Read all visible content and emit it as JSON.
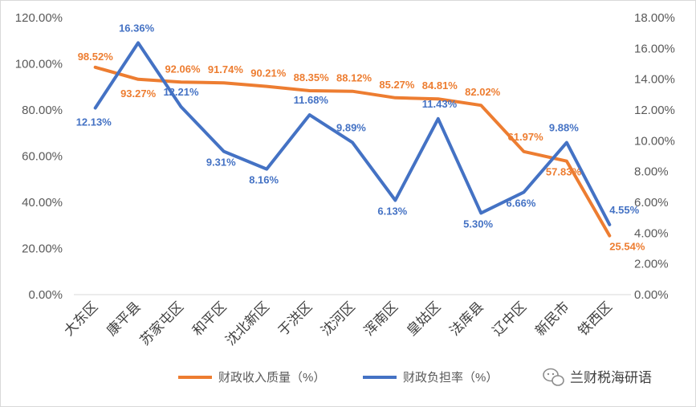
{
  "chart_data": {
    "type": "line",
    "categories": [
      "大东区",
      "康平县",
      "苏家屯区",
      "和平区",
      "沈北新区",
      "于洪区",
      "沈河区",
      "浑南区",
      "皇姑区",
      "法库县",
      "辽中区",
      "新民市",
      "铁西区"
    ],
    "series": [
      {
        "name": "财政收入质量（%）",
        "axis": "left",
        "color": "#ED7D31",
        "values": [
          98.52,
          93.27,
          92.06,
          91.74,
          90.21,
          88.35,
          88.12,
          85.27,
          84.81,
          82.02,
          61.97,
          57.83,
          25.54
        ],
        "labels": [
          "98.52%",
          "93.27%",
          "92.06%",
          "91.74%",
          "90.21%",
          "88.35%",
          "88.12%",
          "85.27%",
          "84.81%",
          "82.02%",
          "61.97%",
          "57.83%",
          "25.54%"
        ]
      },
      {
        "name": "财政负担率（%）",
        "axis": "right",
        "color": "#4472C4",
        "values": [
          12.13,
          16.36,
          12.21,
          9.31,
          8.16,
          11.68,
          9.89,
          6.13,
          11.43,
          5.3,
          6.66,
          9.88,
          4.55
        ],
        "labels": [
          "12.13%",
          "16.36%",
          "12.21%",
          "9.31%",
          "8.16%",
          "11.68%",
          "9.89%",
          "6.13%",
          "11.43%",
          "5.30%",
          "6.66%",
          "9.88%",
          "4.55%"
        ]
      }
    ],
    "y_left": {
      "min": 0,
      "max": 120,
      "ticks": [
        "0.00%",
        "20.00%",
        "40.00%",
        "60.00%",
        "80.00%",
        "100.00%",
        "120.00%"
      ]
    },
    "y_right": {
      "min": 0,
      "max": 18,
      "ticks": [
        "0.00%",
        "2.00%",
        "4.00%",
        "6.00%",
        "8.00%",
        "10.00%",
        "12.00%",
        "14.00%",
        "16.00%",
        "18.00%"
      ]
    },
    "grid": false,
    "legend_position": "bottom"
  },
  "watermark": {
    "text": "兰财税海研语",
    "icon": "wechat-icon"
  }
}
